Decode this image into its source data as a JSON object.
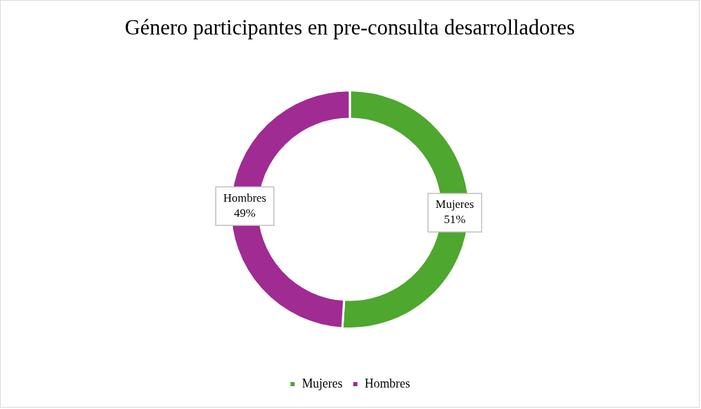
{
  "chart_data": {
    "type": "donut",
    "title": "Género participantes en pre-consulta desarrolladores",
    "categories": [
      "Mujeres",
      "Hombres"
    ],
    "values": [
      51,
      49
    ],
    "colors": [
      "#4ea72e",
      "#a02b93"
    ],
    "value_labels": [
      "51%",
      "49%"
    ],
    "legend": "bottom"
  }
}
